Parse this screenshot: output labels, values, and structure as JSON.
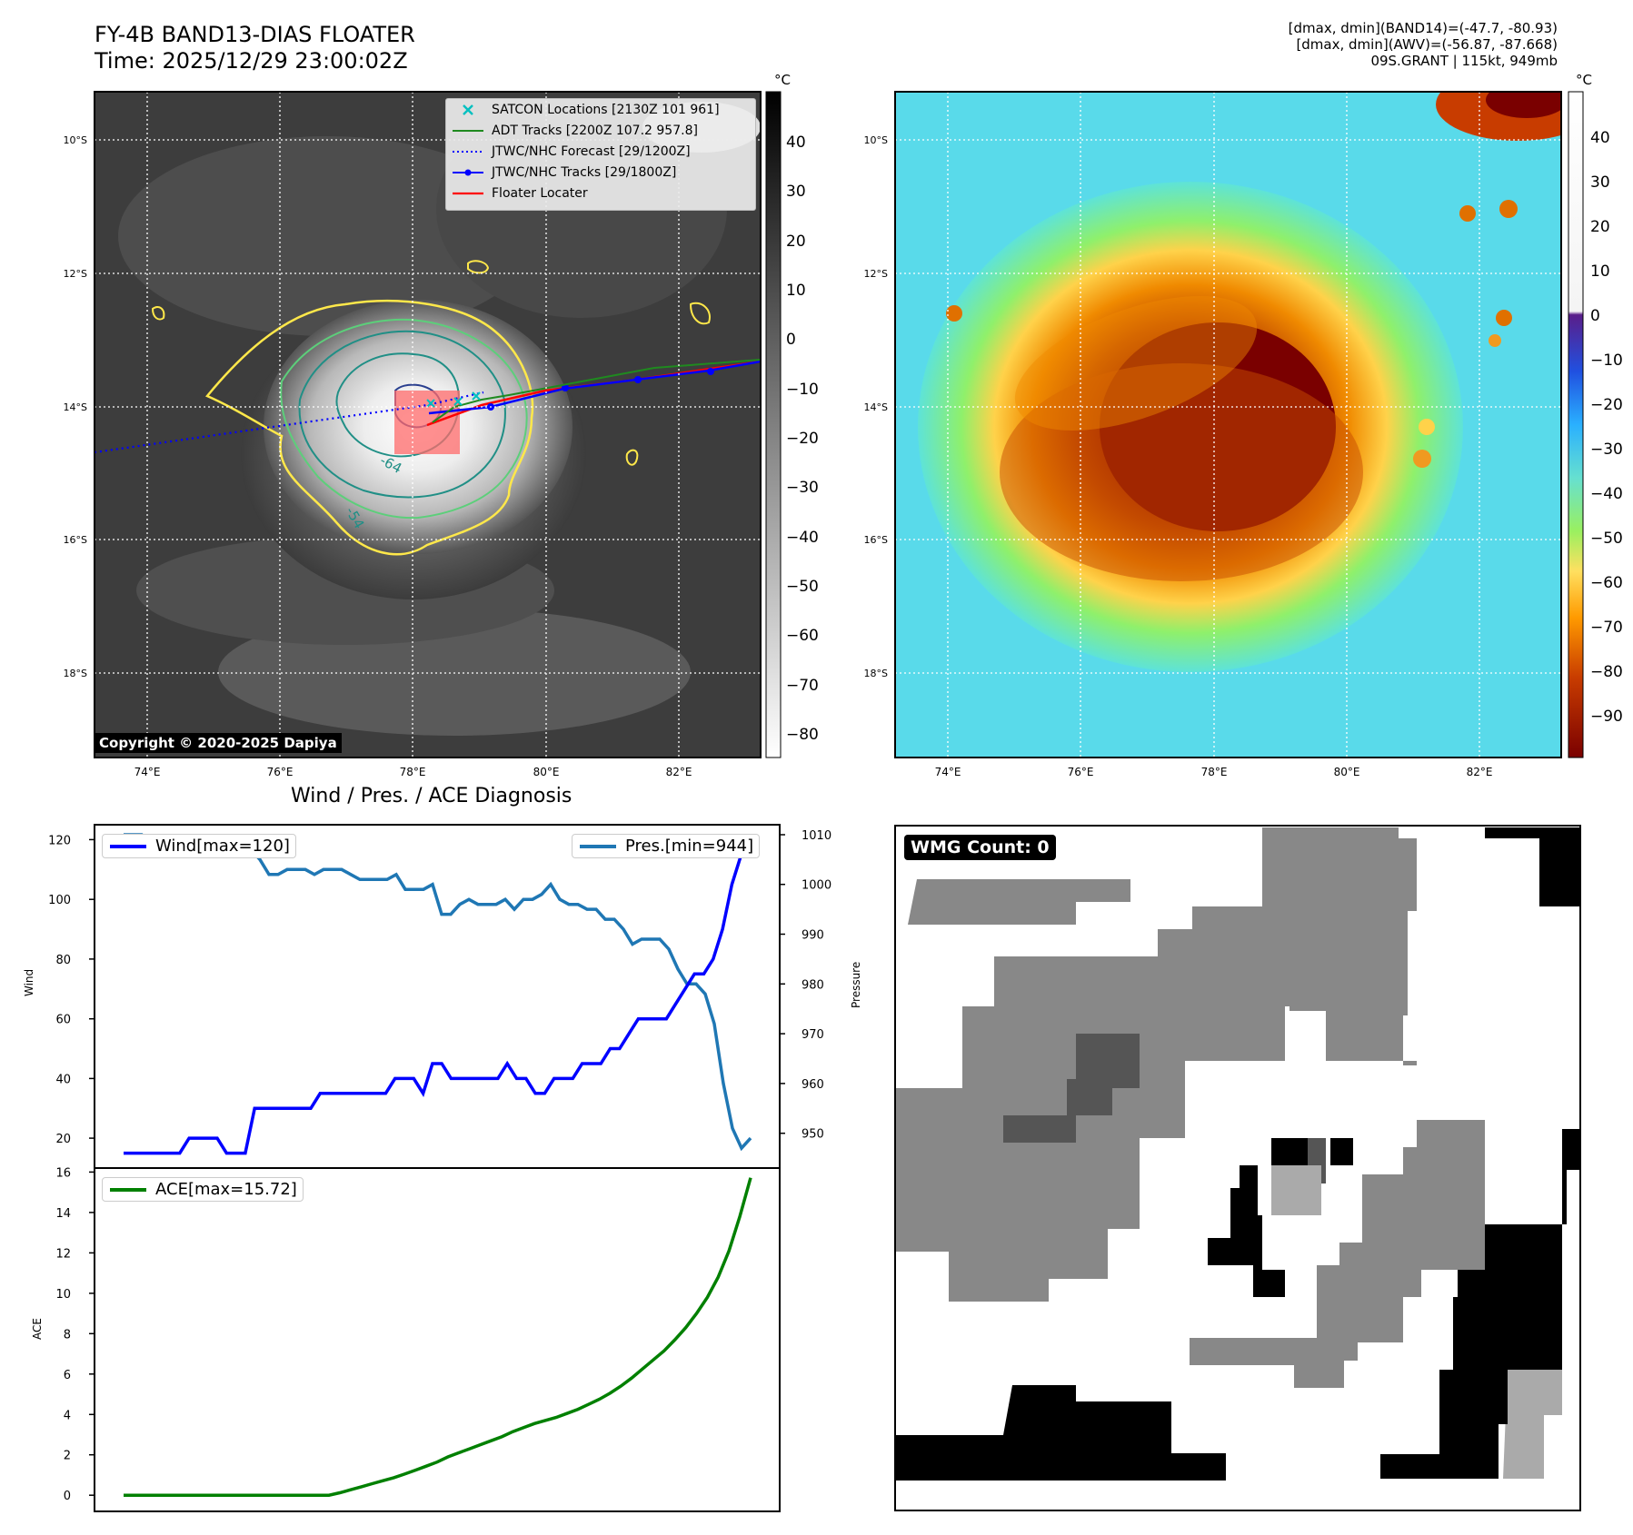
{
  "header": {
    "title_line1": "FY-4B BAND13-DIAS FLOATER",
    "title_line2": "Time: 2025/12/29 23:00:02Z",
    "right_line1": "[dmax, dmin](BAND14)=(-47.7, -80.93)",
    "right_line2": "[dmax, dmin](AWV)=(-56.87, -87.668)",
    "right_line3": "09S.GRANT | 115kt, 949mb"
  },
  "colors": {
    "satcon": "#00c0c0",
    "adt": "#1f8a1f",
    "jtwc_forecast": "#0000ff",
    "jtwc_tracks": "#0000ff",
    "floater": "#ff0000",
    "wind_line": "#0000ff",
    "pres_line": "#1f77b4",
    "ace_line": "#008000",
    "contour_yellow": "#ffe84a",
    "contour_green": "#5ccf7a",
    "contour_teal": "#208f86",
    "contour_navy": "#2a3f8f"
  },
  "map_axes": {
    "lat_labels": [
      "10°S",
      "12°S",
      "14°S",
      "16°S",
      "18°S"
    ],
    "lon_labels": [
      "74°E",
      "76°E",
      "78°E",
      "80°E",
      "82°E"
    ],
    "contour_labels": [
      "-64",
      "-54"
    ]
  },
  "left_panel": {
    "unit": "°C",
    "colorbar_ticks": [
      "40",
      "30",
      "20",
      "10",
      "0",
      "−10",
      "−20",
      "−30",
      "−40",
      "−50",
      "−60",
      "−70",
      "−80"
    ],
    "legend": [
      {
        "label": "SATCON Locations [2130Z 101 961]",
        "marker": "x-icon"
      },
      {
        "label": "ADT Tracks [2200Z 107.2 957.8]",
        "marker": "solid-line-icon"
      },
      {
        "label": "JTWC/NHC Forecast [29/1200Z]",
        "marker": "dotted-line-icon"
      },
      {
        "label": "JTWC/NHC Tracks [29/1800Z]",
        "marker": "dot-line-icon"
      },
      {
        "label": "Floater Locater",
        "marker": "solid-line-icon"
      }
    ],
    "copyright": "Copyright © 2020-2025 Dapiya"
  },
  "right_panel": {
    "unit": "°C",
    "colorbar_ticks": [
      "40",
      "30",
      "20",
      "10",
      "0",
      "−10",
      "−20",
      "−30",
      "−40",
      "−50",
      "−60",
      "−70",
      "−80",
      "−90"
    ]
  },
  "diagnosis": {
    "title": "Wind / Pres. / ACE Diagnosis",
    "wind_axis_label": "Wind",
    "pressure_axis_label": "Pressure",
    "ace_axis_label": "ACE",
    "wind_legend": "Wind[max=120]",
    "pres_legend": "Pres.[min=944]",
    "ace_legend": "ACE[max=15.72]",
    "wind_ticks": [
      "120",
      "100",
      "80",
      "60",
      "40",
      "20"
    ],
    "pres_ticks": [
      "1010",
      "1000",
      "990",
      "980",
      "970",
      "960",
      "950"
    ],
    "ace_ticks": [
      "16",
      "14",
      "12",
      "10",
      "8",
      "6",
      "4",
      "2",
      "0"
    ]
  },
  "wmg": {
    "label": "WMG Count: 0"
  },
  "chart_data": [
    {
      "type": "line",
      "name": "wind",
      "ylabel": "Wind",
      "ylim": [
        10,
        125
      ],
      "values": [
        15,
        15,
        15,
        15,
        15,
        15,
        15,
        20,
        20,
        20,
        20,
        15,
        15,
        15,
        30,
        30,
        30,
        30,
        30,
        30,
        30,
        35,
        35,
        35,
        35,
        35,
        35,
        35,
        35,
        40,
        40,
        40,
        35,
        45,
        45,
        40,
        40,
        40,
        40,
        40,
        40,
        45,
        40,
        40,
        35,
        35,
        40,
        40,
        40,
        45,
        45,
        45,
        50,
        50,
        55,
        60,
        60,
        60,
        60,
        65,
        70,
        75,
        75,
        80,
        90,
        105,
        115,
        120
      ]
    },
    {
      "type": "line",
      "name": "pressure",
      "ylabel": "Pressure",
      "ylim": [
        943,
        1012
      ],
      "values": [
        1010,
        1010,
        1010,
        1008,
        1008,
        1008,
        1008,
        1008,
        1007,
        1007,
        1007,
        1008,
        1008,
        1008,
        1007,
        1005,
        1002,
        1002,
        1003,
        1003,
        1003,
        1002,
        1003,
        1003,
        1003,
        1002,
        1001,
        1001,
        1001,
        1001,
        1002,
        999,
        999,
        999,
        1000,
        994,
        994,
        996,
        997,
        996,
        996,
        996,
        997,
        995,
        997,
        997,
        998,
        1000,
        997,
        996,
        996,
        995,
        995,
        993,
        993,
        991,
        988,
        989,
        989,
        989,
        987,
        983,
        980,
        980,
        978,
        972,
        960,
        951,
        947,
        949
      ]
    },
    {
      "type": "line",
      "name": "ace",
      "ylabel": "ACE",
      "ylim": [
        -0.8,
        16.2
      ],
      "values": [
        0,
        0,
        0,
        0,
        0,
        0,
        0,
        0,
        0,
        0,
        0,
        0,
        0,
        0,
        0,
        0,
        0,
        0,
        0,
        0,
        0.12,
        0.27,
        0.42,
        0.57,
        0.72,
        0.87,
        1.05,
        1.24,
        1.44,
        1.64,
        1.9,
        2.1,
        2.3,
        2.5,
        2.7,
        2.9,
        3.15,
        3.35,
        3.55,
        3.7,
        3.85,
        4.05,
        4.25,
        4.5,
        4.75,
        5.05,
        5.4,
        5.8,
        6.25,
        6.7,
        7.15,
        7.7,
        8.3,
        9.0,
        9.8,
        10.8,
        12.1,
        13.8,
        15.72
      ]
    }
  ]
}
